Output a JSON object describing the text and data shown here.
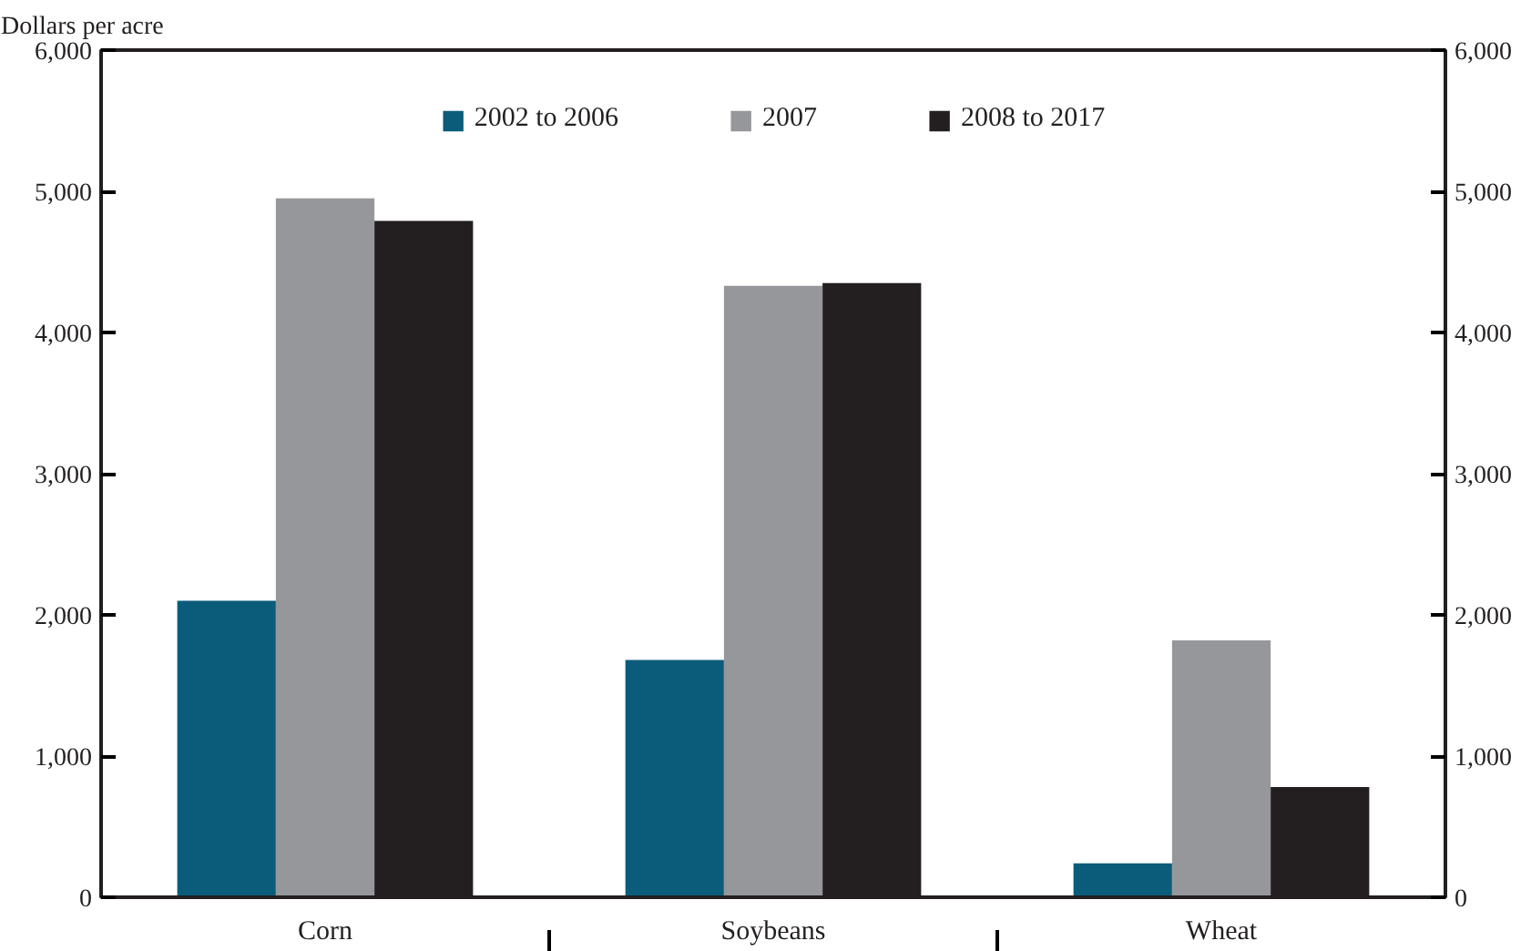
{
  "chart_data": {
    "type": "bar",
    "ylabel": "Dollars per acre",
    "categories": [
      "Corn",
      "Soybeans",
      "Wheat"
    ],
    "series": [
      {
        "name": "2002 to 2006",
        "color": "#0b5c7a",
        "values": [
          2100,
          1680,
          240
        ]
      },
      {
        "name": "2007",
        "color": "#96979b",
        "values": [
          4950,
          4330,
          1820
        ]
      },
      {
        "name": "2008 to 2017",
        "color": "#231f20",
        "values": [
          4790,
          4350,
          780
        ]
      }
    ],
    "ylim": [
      0,
      6000
    ],
    "yticks": [
      {
        "value": 0,
        "label": "0"
      },
      {
        "value": 1000,
        "label": "1,000"
      },
      {
        "value": 2000,
        "label": "2,000"
      },
      {
        "value": 3000,
        "label": "3,000"
      },
      {
        "value": 4000,
        "label": "4,000"
      },
      {
        "value": 5000,
        "label": "5,000"
      },
      {
        "value": 6000,
        "label": "6,000"
      }
    ],
    "y2lim": [
      0,
      6000
    ],
    "y2ticks": [
      {
        "value": 0,
        "label": "0"
      },
      {
        "value": 1000,
        "label": "1,000"
      },
      {
        "value": 2000,
        "label": "2,000"
      },
      {
        "value": 3000,
        "label": "3,000"
      },
      {
        "value": 4000,
        "label": "4,000"
      },
      {
        "value": 5000,
        "label": "5,000"
      },
      {
        "value": 6000,
        "label": "6,000"
      }
    ],
    "grid": false,
    "legend": "top"
  }
}
